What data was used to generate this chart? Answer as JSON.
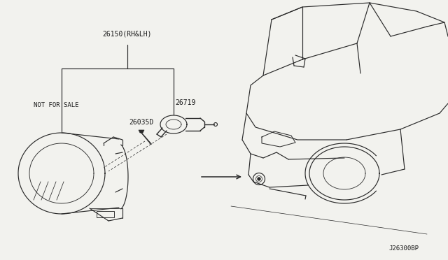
{
  "bg_color": "#f2f2ee",
  "line_color": "#2a2a2a",
  "text_color": "#1a1a1a",
  "part_label_26150": "26150(RH&LH)",
  "part_label_26035": "26035D",
  "part_label_26719": "26719",
  "part_label_nfs": "NOT FOR SALE",
  "diagram_code": "J26300BP",
  "font_size_parts": 7.0,
  "font_size_code": 6.5
}
